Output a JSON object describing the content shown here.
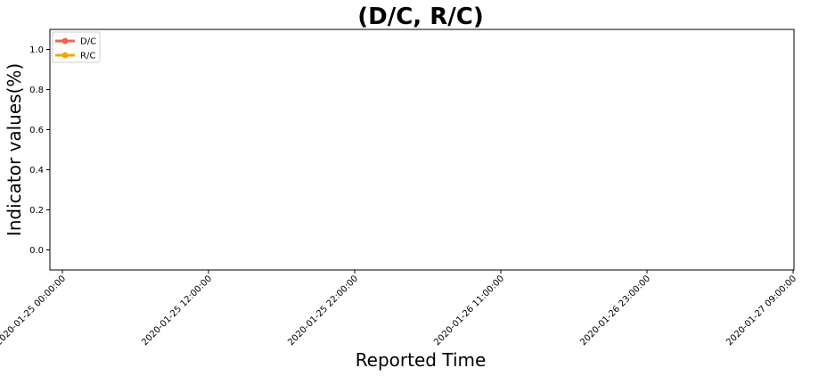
{
  "chart_data": {
    "type": "line",
    "title": "(D/C, R/C)",
    "xlabel": "Reported Time",
    "ylabel": "Indicator values(%)",
    "x_ticks": [
      "2020-01-25 00:00:00",
      "2020-01-25 12:00:00",
      "2020-01-25 22:00:00",
      "2020-01-26 11:00:00",
      "2020-01-26 23:00:00",
      "2020-01-27 09:00:00"
    ],
    "y_ticks": [
      0.0,
      0.2,
      0.4,
      0.6,
      0.8,
      1.0
    ],
    "y_tick_labels": [
      "0.0",
      "0.2",
      "0.4",
      "0.6",
      "0.8",
      "1.0"
    ],
    "ylim": [
      -0.1,
      1.1
    ],
    "grid": false,
    "legend_position": "top-left",
    "series": [
      {
        "name": "D/C",
        "color": "#f4634a",
        "values": []
      },
      {
        "name": "R/C",
        "color": "#f7a400",
        "values": []
      }
    ]
  }
}
